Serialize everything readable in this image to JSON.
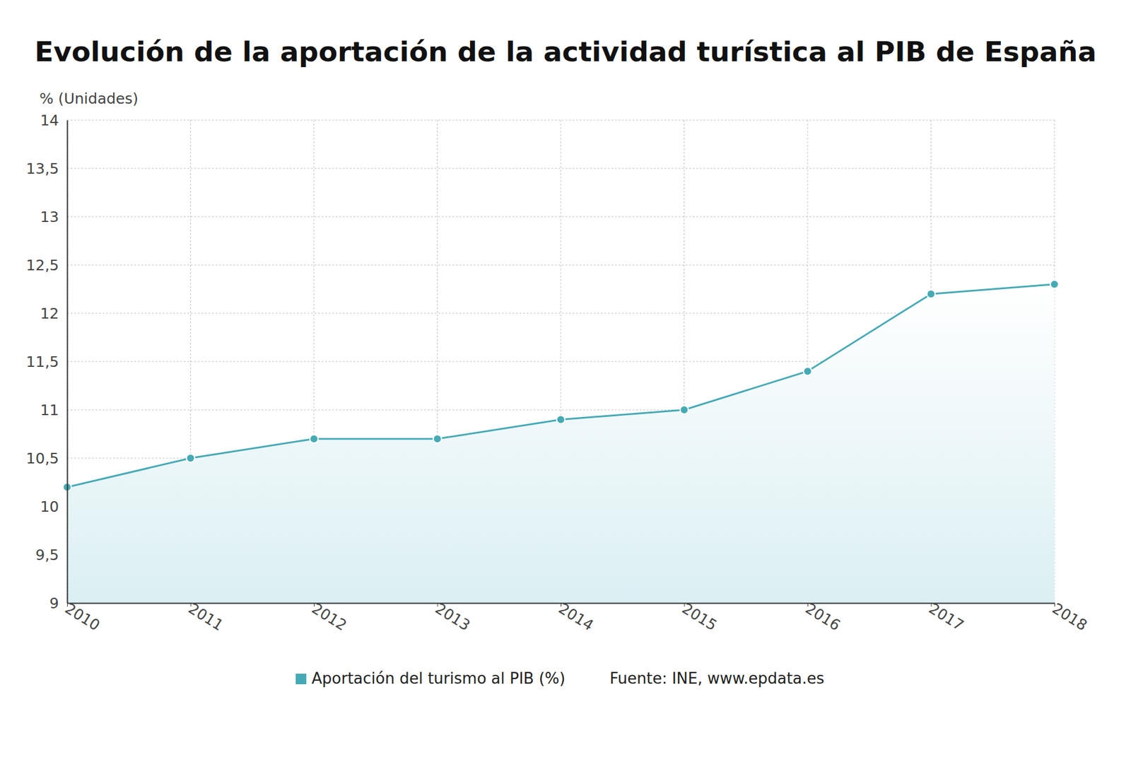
{
  "chart_data": {
    "type": "area",
    "title": "Evolución de la aportación de la actividad turística al PIB de España",
    "y_label": "% (Unidades)",
    "source": "Fuente: INE, www.epdata.es",
    "categories": [
      "2010",
      "2011",
      "2012",
      "2013",
      "2014",
      "2015",
      "2016",
      "2017",
      "2018"
    ],
    "series": [
      {
        "name": "Aportación del turismo al PIB (%)",
        "color": "#46aab5",
        "values": [
          10.2,
          10.5,
          10.7,
          10.7,
          10.9,
          11.0,
          11.4,
          12.2,
          12.3
        ]
      }
    ],
    "ylim": [
      9,
      14
    ],
    "yticks": [
      9,
      {
        "value": 9.5,
        "label": "9,5"
      },
      10,
      {
        "value": 10.5,
        "label": "10,5"
      },
      11,
      {
        "value": 11.5,
        "label": "11,5"
      },
      12,
      {
        "value": 12.5,
        "label": "12,5"
      },
      13,
      {
        "value": 13.5,
        "label": "13,5"
      },
      14
    ],
    "grid": true,
    "legend": "bottom",
    "marker": "circle"
  }
}
